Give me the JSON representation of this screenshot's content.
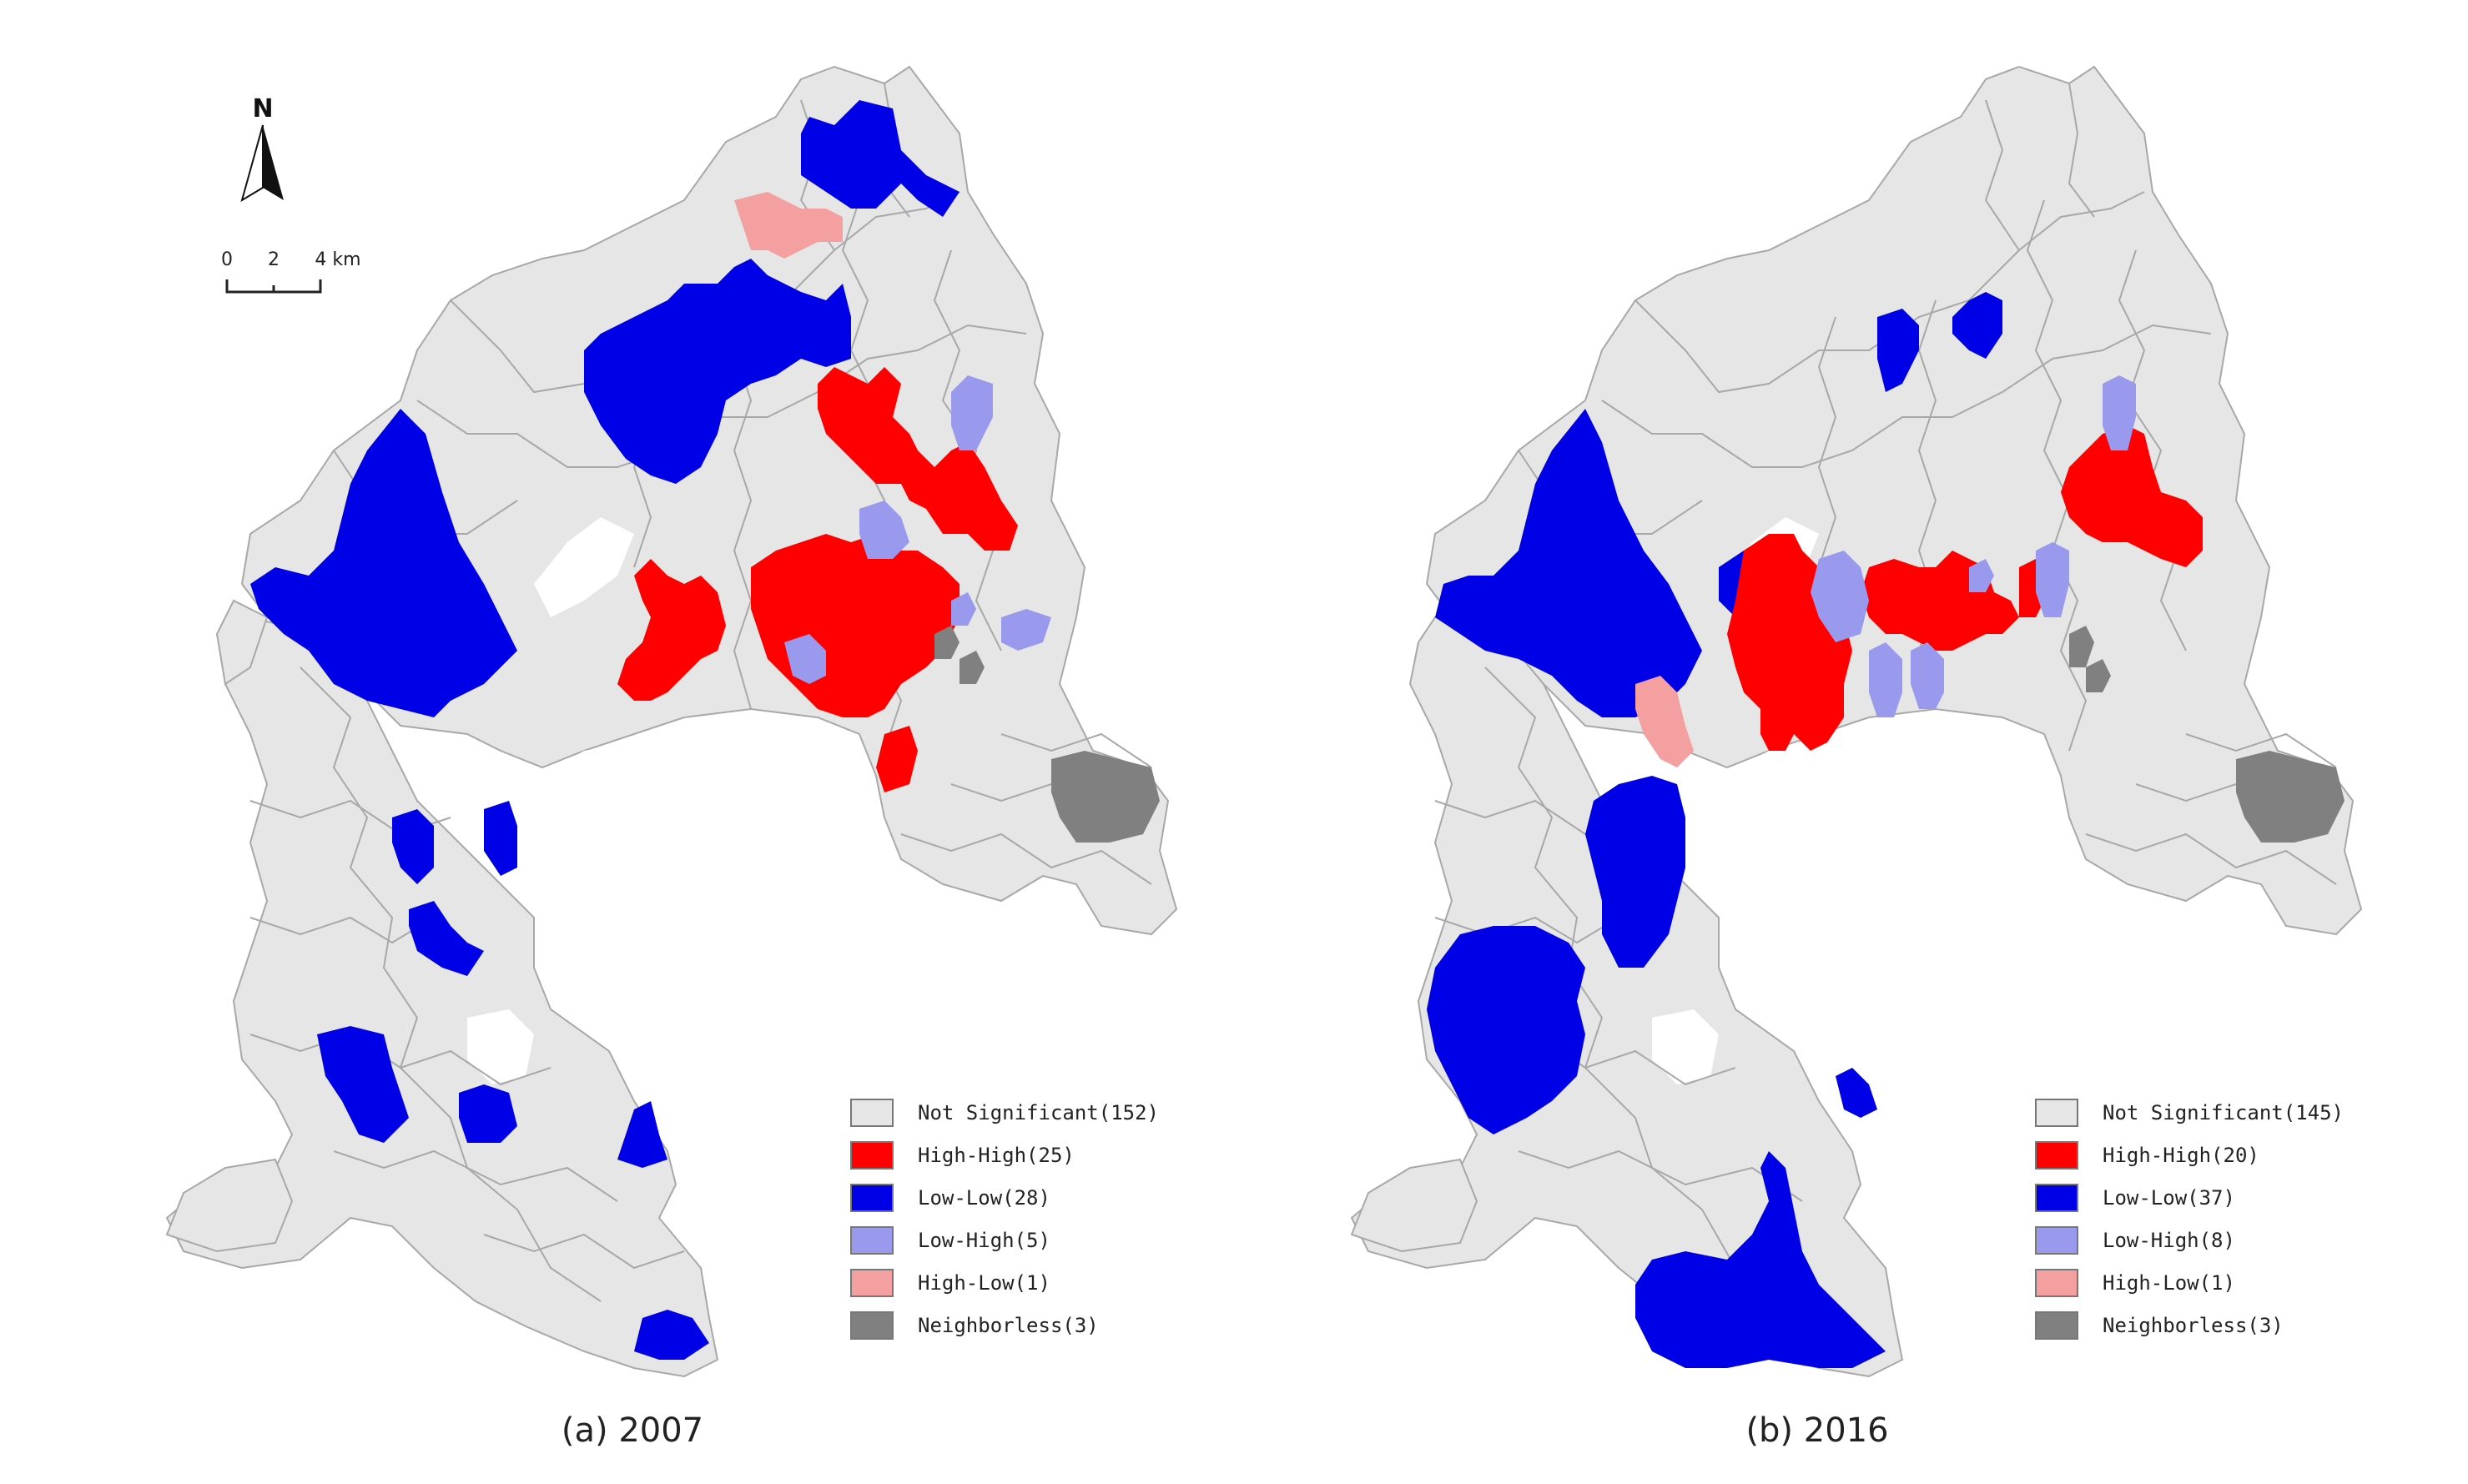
{
  "north_label": "N",
  "scale_bar": {
    "ticks": [
      "0",
      "2",
      "4 km"
    ]
  },
  "colors": {
    "not_significant": "#e6e6e6",
    "high_high": "#ff0000",
    "low_low": "#0000e6",
    "low_high": "#9999ee",
    "high_low": "#f5a0a0",
    "neighborless": "#808080",
    "boundary": "#a8a8a8"
  },
  "panels": [
    {
      "caption": "(a) 2007",
      "legend": [
        {
          "label": "Not Significant(152)",
          "cluster": "not_significant",
          "count": 152
        },
        {
          "label": "High-High(25)",
          "cluster": "high_high",
          "count": 25
        },
        {
          "label": "Low-Low(28)",
          "cluster": "low_low",
          "count": 28
        },
        {
          "label": "Low-High(5)",
          "cluster": "low_high",
          "count": 5
        },
        {
          "label": "High-Low(1)",
          "cluster": "high_low",
          "count": 1
        },
        {
          "label": "Neighborless(3)",
          "cluster": "neighborless",
          "count": 3
        }
      ]
    },
    {
      "caption": "(b) 2016",
      "legend": [
        {
          "label": "Not Significant(145)",
          "cluster": "not_significant",
          "count": 145
        },
        {
          "label": "High-High(20)",
          "cluster": "high_high",
          "count": 20
        },
        {
          "label": "Low-Low(37)",
          "cluster": "low_low",
          "count": 37
        },
        {
          "label": "Low-High(8)",
          "cluster": "low_high",
          "count": 8
        },
        {
          "label": "High-Low(1)",
          "cluster": "high_low",
          "count": 1
        },
        {
          "label": "Neighborless(3)",
          "cluster": "neighborless",
          "count": 3
        }
      ]
    }
  ]
}
